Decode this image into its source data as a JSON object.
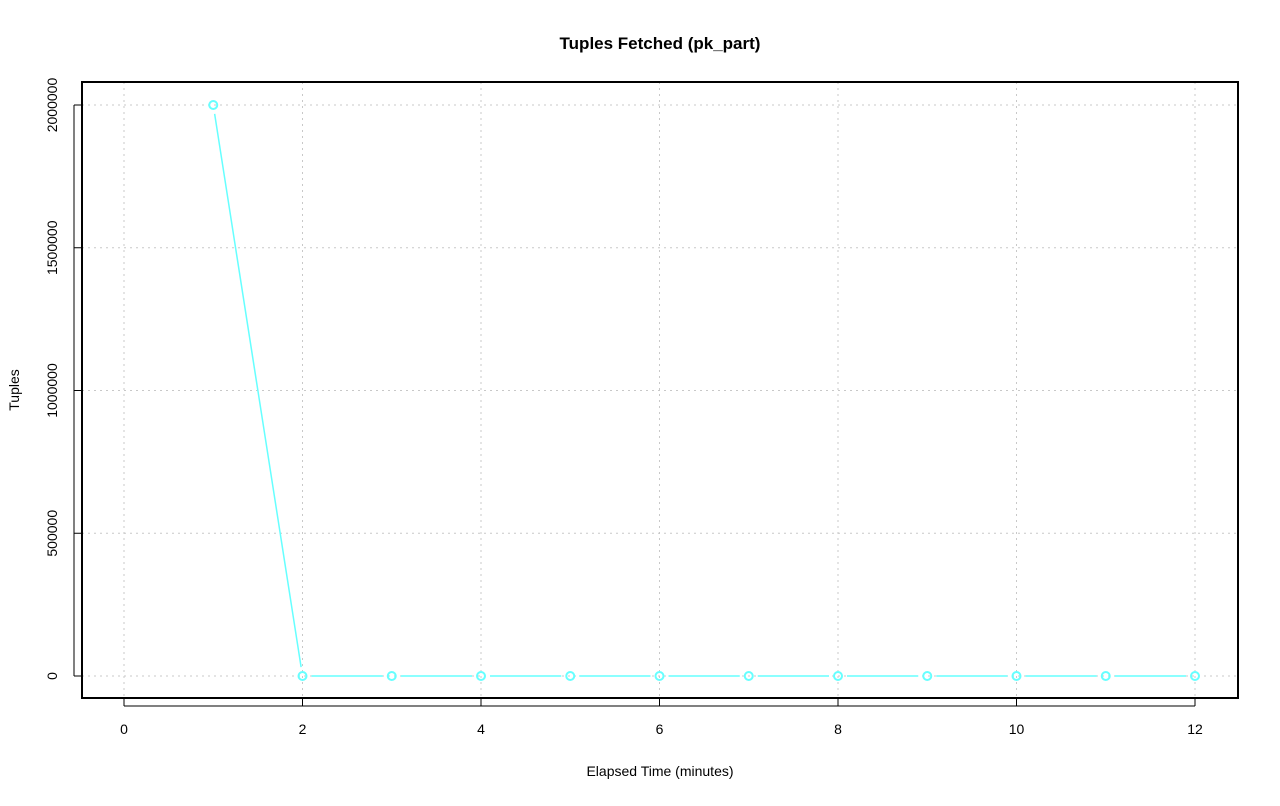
{
  "chart_data": {
    "type": "line",
    "title": "Tuples Fetched (pk_part)",
    "xlabel": "Elapsed Time (minutes)",
    "ylabel": "Tuples",
    "x": [
      1,
      2,
      3,
      4,
      5,
      6,
      7,
      8,
      9,
      10,
      11,
      12
    ],
    "series": [
      {
        "values": [
          2000000,
          0,
          0,
          0,
          0,
          0,
          0,
          0,
          0,
          0,
          0,
          0
        ],
        "color": "#66ffff",
        "marker": "open-circle"
      }
    ],
    "xlim": [
      0,
      12
    ],
    "ylim": [
      0,
      2000000
    ],
    "xticks": [
      "0",
      "2",
      "4",
      "6",
      "8",
      "10",
      "12"
    ],
    "yticks": [
      "0",
      "500000",
      "1000000",
      "1500000",
      "2000000"
    ],
    "grid": true,
    "legend": "none"
  }
}
